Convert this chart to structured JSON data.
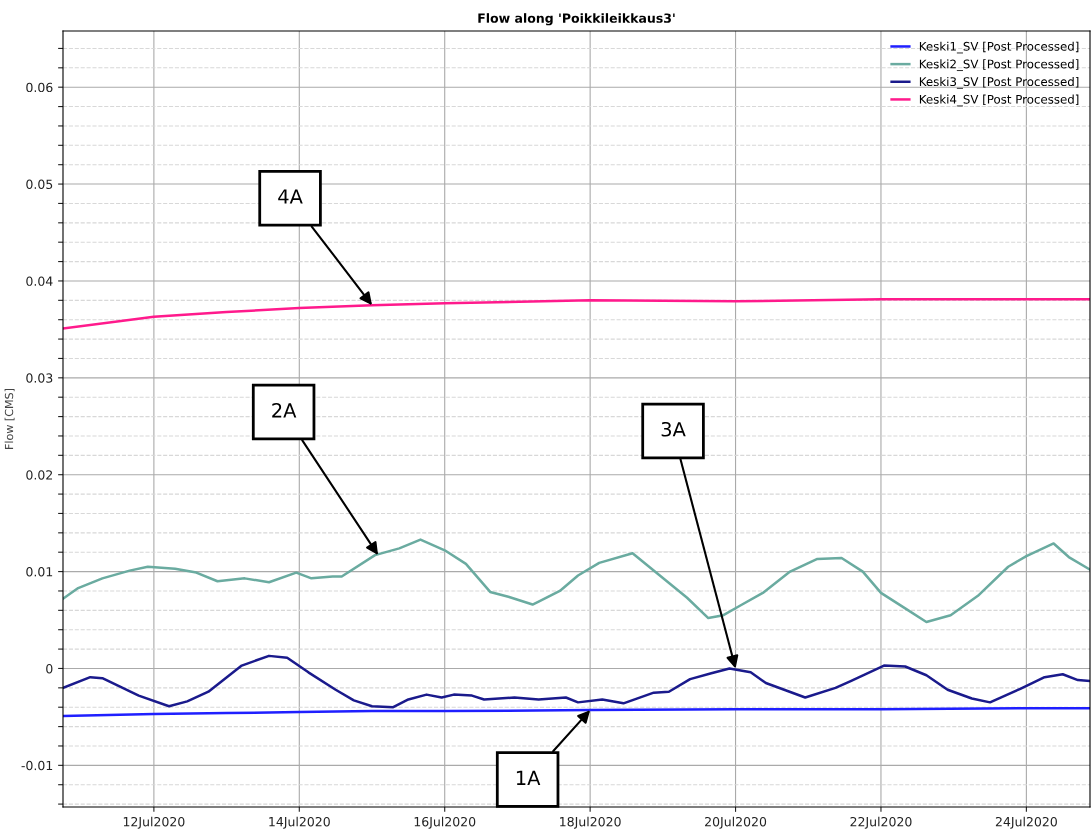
{
  "chart_data": {
    "type": "line",
    "title": "Flow along 'Poikkileikkaus3'",
    "ylabel": "Flow [CMS]",
    "xlim": [
      "2020-07-10T18:00",
      "2020-07-24T21:00"
    ],
    "xticks": [
      {
        "value": "2020-07-12",
        "label": "12Jul2020"
      },
      {
        "value": "2020-07-14",
        "label": "14Jul2020"
      },
      {
        "value": "2020-07-16",
        "label": "16Jul2020"
      },
      {
        "value": "2020-07-18",
        "label": "18Jul2020"
      },
      {
        "value": "2020-07-20",
        "label": "20Jul2020"
      },
      {
        "value": "2020-07-22",
        "label": "22Jul2020"
      },
      {
        "value": "2020-07-24",
        "label": "24Jul2020"
      }
    ],
    "ylim": [
      -0.0143,
      0.0658
    ],
    "yticks": [
      {
        "value": -0.014,
        "label": null
      },
      {
        "value": -0.012,
        "label": null
      },
      -0.01,
      {
        "value": -0.008,
        "label": null
      },
      {
        "value": -0.006,
        "label": null
      },
      {
        "value": -0.004,
        "label": null
      },
      {
        "value": -0.002,
        "label": null
      },
      0,
      {
        "value": 0.002,
        "label": null
      },
      {
        "value": 0.004,
        "label": null
      },
      {
        "value": 0.006,
        "label": null
      },
      {
        "value": 0.008,
        "label": null
      },
      0.01,
      {
        "value": 0.012,
        "label": null
      },
      {
        "value": 0.014,
        "label": null
      },
      {
        "value": 0.016,
        "label": null
      },
      {
        "value": 0.018,
        "label": null
      },
      0.02,
      {
        "value": 0.022,
        "label": null
      },
      {
        "value": 0.024,
        "label": null
      },
      {
        "value": 0.026,
        "label": null
      },
      {
        "value": 0.028,
        "label": null
      },
      0.03,
      {
        "value": 0.032,
        "label": null
      },
      {
        "value": 0.034,
        "label": null
      },
      {
        "value": 0.036,
        "label": null
      },
      {
        "value": 0.038,
        "label": null
      },
      0.04,
      {
        "value": 0.042,
        "label": null
      },
      {
        "value": 0.044,
        "label": null
      },
      {
        "value": 0.046,
        "label": null
      },
      {
        "value": 0.048,
        "label": null
      },
      0.05,
      {
        "value": 0.052,
        "label": null
      },
      {
        "value": 0.054,
        "label": null
      },
      {
        "value": 0.056,
        "label": null
      },
      {
        "value": 0.058,
        "label": null
      },
      0.06,
      {
        "value": 0.062,
        "label": null
      },
      {
        "value": 0.064,
        "label": null
      }
    ],
    "grid": true,
    "legend": "top right",
    "marker": "none",
    "line_style": "solid",
    "x": [
      "2020-07-10T18:00",
      "2020-07-12T00:00",
      "2020-07-13T00:00",
      "2020-07-14T00:00",
      "2020-07-15T00:00",
      "2020-07-16T00:00",
      "2020-07-18T00:00",
      "2020-07-20T00:00",
      "2020-07-22T00:00",
      "2020-07-24T00:00",
      "2020-07-24T21:00"
    ],
    "series": [
      {
        "name": "Keski1_SV [Post Processed]",
        "color": "#1f1fff",
        "values": [
          -0.0049,
          -0.0047,
          -0.0046,
          -0.0045,
          -0.0044,
          -0.0044,
          -0.0043,
          -0.0042,
          -0.0042,
          -0.0041,
          -0.0041
        ]
      },
      {
        "name": "Keski2_SV [Post Processed]",
        "color": "#6aaba0",
        "x": [
          "2020-07-10T18:00",
          "2020-07-10T23:00",
          "2020-07-11T07:00",
          "2020-07-11T16:00",
          "2020-07-11T22:00",
          "2020-07-12T07:00",
          "2020-07-12T14:00",
          "2020-07-12T21:00",
          "2020-07-13T06:00",
          "2020-07-13T14:00",
          "2020-07-13T23:00",
          "2020-07-14T04:00",
          "2020-07-14T11:00",
          "2020-07-14T14:00",
          "2020-07-15T01:00",
          "2020-07-15T09:00",
          "2020-07-15T16:00",
          "2020-07-16T00:00",
          "2020-07-16T07:00",
          "2020-07-16T15:00",
          "2020-07-16T21:00",
          "2020-07-17T05:00",
          "2020-07-17T07:00",
          "2020-07-17T14:00",
          "2020-07-17T20:00",
          "2020-07-18T03:00",
          "2020-07-18T14:00",
          "2020-07-18T23:00",
          "2020-07-19T08:00",
          "2020-07-19T15:00",
          "2020-07-19T20:00",
          "2020-07-20T01:00",
          "2020-07-20T09:00",
          "2020-07-20T18:00",
          "2020-07-21T03:00",
          "2020-07-21T11:00",
          "2020-07-21T18:00",
          "2020-07-22T00:00",
          "2020-07-22T08:00",
          "2020-07-22T15:00",
          "2020-07-22T23:00",
          "2020-07-23T08:00",
          "2020-07-23T18:00",
          "2020-07-24T00:00",
          "2020-07-24T09:00",
          "2020-07-24T14:00",
          "2020-07-24T21:00"
        ],
        "values": [
          0.0072,
          0.0083,
          0.0093,
          0.0101,
          0.0105,
          0.0103,
          0.0099,
          0.009,
          0.0093,
          0.0089,
          0.0099,
          0.0093,
          0.0095,
          0.0095,
          0.0117,
          0.0124,
          0.0133,
          0.0122,
          0.0108,
          0.0079,
          0.0074,
          0.0066,
          0.0069,
          0.008,
          0.0096,
          0.0109,
          0.0119,
          0.0096,
          0.0073,
          0.0052,
          0.0055,
          0.0064,
          0.0078,
          0.01,
          0.0113,
          0.0114,
          0.01,
          0.0078,
          0.0062,
          0.0048,
          0.0055,
          0.0075,
          0.0105,
          0.0116,
          0.0129,
          0.0115,
          0.0102
        ]
      },
      {
        "name": "Keski3_SV [Post Processed]",
        "color": "#1a1a8c",
        "x": [
          "2020-07-10T18:00",
          "2020-07-11T03:00",
          "2020-07-11T07:00",
          "2020-07-11T13:00",
          "2020-07-11T19:00",
          "2020-07-12T05:00",
          "2020-07-12T11:00",
          "2020-07-12T18:00",
          "2020-07-13T05:00",
          "2020-07-13T14:00",
          "2020-07-13T20:00",
          "2020-07-14T03:00",
          "2020-07-14T12:00",
          "2020-07-14T18:00",
          "2020-07-15T00:00",
          "2020-07-15T07:00",
          "2020-07-15T12:00",
          "2020-07-15T18:00",
          "2020-07-15T23:00",
          "2020-07-16T03:00",
          "2020-07-16T09:00",
          "2020-07-16T13:00",
          "2020-07-16T23:00",
          "2020-07-17T07:00",
          "2020-07-17T16:00",
          "2020-07-17T20:00",
          "2020-07-18T04:00",
          "2020-07-18T11:00",
          "2020-07-18T21:00",
          "2020-07-19T02:00",
          "2020-07-19T09:00",
          "2020-07-19T16:00",
          "2020-07-19T22:00",
          "2020-07-20T05:00",
          "2020-07-20T10:00",
          "2020-07-20T23:00",
          "2020-07-21T09:00",
          "2020-07-21T14:00",
          "2020-07-22T01:00",
          "2020-07-22T08:00",
          "2020-07-22T15:00",
          "2020-07-22T22:00",
          "2020-07-23T06:00",
          "2020-07-23T12:00",
          "2020-07-23T22:00",
          "2020-07-24T06:00",
          "2020-07-24T12:00",
          "2020-07-24T17:00",
          "2020-07-24T21:00"
        ],
        "values": [
          -0.002,
          -0.0009,
          -0.001,
          -0.0019,
          -0.0028,
          -0.0039,
          -0.0034,
          -0.0024,
          0.0003,
          0.0013,
          0.0011,
          -0.0004,
          -0.0022,
          -0.0033,
          -0.0039,
          -0.004,
          -0.0032,
          -0.0027,
          -0.003,
          -0.0027,
          -0.0028,
          -0.0032,
          -0.003,
          -0.0032,
          -0.003,
          -0.0035,
          -0.0032,
          -0.0036,
          -0.0025,
          -0.0024,
          -0.0011,
          -0.0005,
          0.0,
          -0.0004,
          -0.0015,
          -0.003,
          -0.002,
          -0.0013,
          0.0003,
          0.0002,
          -0.0007,
          -0.0022,
          -0.0031,
          -0.0035,
          -0.0021,
          -0.0009,
          -0.0006,
          -0.0012,
          -0.0013
        ]
      },
      {
        "name": "Keski4_SV [Post Processed]",
        "color": "#ff1a8c",
        "values": [
          0.0351,
          0.0363,
          0.0368,
          0.0372,
          0.0375,
          0.0377,
          0.038,
          0.0379,
          0.0381,
          0.0381,
          0.0381
        ]
      }
    ],
    "annotations": [
      {
        "text": "4A",
        "x": "2020-07-15T00:00",
        "y": 0.0375
      },
      {
        "text": "2A",
        "x": "2020-07-15T02:00",
        "y": 0.0117
      },
      {
        "text": "3A",
        "x": "2020-07-20T00:00",
        "y": 0.0
      },
      {
        "text": "1A",
        "x": "2020-07-18T00:00",
        "y": -0.0043
      }
    ]
  }
}
